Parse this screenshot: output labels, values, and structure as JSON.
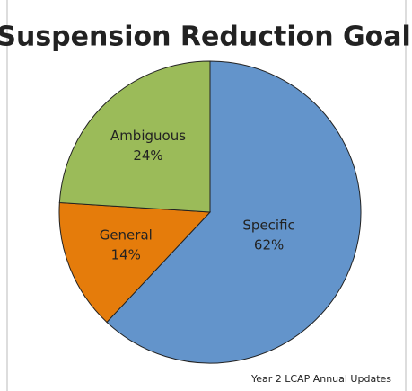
{
  "chart_data": {
    "type": "pie",
    "title": "Suspension Reduction Goals",
    "categories": [
      "Specific",
      "General",
      "Ambiguous"
    ],
    "values": [
      62,
      14,
      24
    ],
    "value_labels": [
      "62%",
      "14%",
      "24%"
    ],
    "colors": [
      "#6394cb",
      "#e57c0b",
      "#9bbb59"
    ],
    "annotation": "Year 2 LCAP Annual Updates"
  }
}
